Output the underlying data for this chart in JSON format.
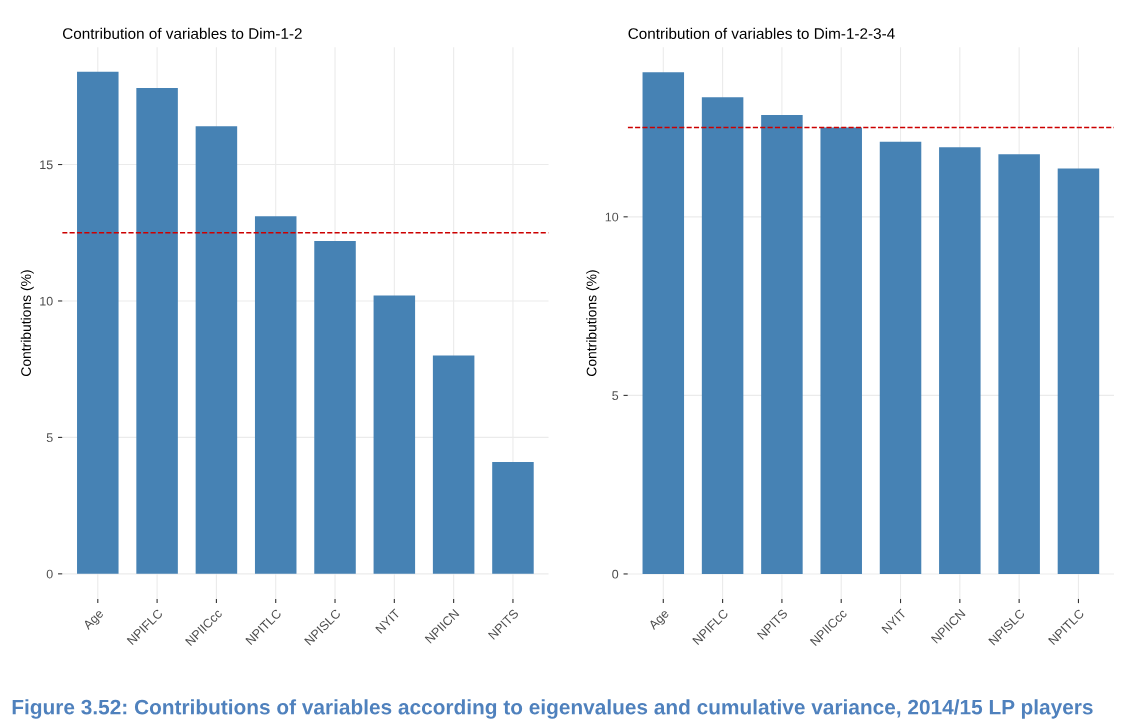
{
  "chart_data": [
    {
      "type": "bar",
      "title": "Contribution of variables to Dim-1-2",
      "ylabel": "Contributions (%)",
      "categories": [
        "Age",
        "NPIFLC",
        "NPIICcc",
        "NPITLC",
        "NPISLC",
        "NYIT",
        "NPIICN",
        "NPITS"
      ],
      "values": [
        18.4,
        17.8,
        16.4,
        13.1,
        12.2,
        10.2,
        8.0,
        4.1
      ],
      "color": "#4682b4",
      "ylim": [
        -0.92,
        19.3
      ],
      "yticks": [
        0,
        5,
        10,
        15
      ],
      "grid": true,
      "ref_lines": [
        {
          "axis": "y",
          "value": 12.5,
          "color": "#cc0000",
          "line_style": "dashed"
        }
      ]
    },
    {
      "type": "bar",
      "title": "Contribution of variables to Dim-1-2-3-4",
      "ylabel": "Contributions (%)",
      "categories": [
        "Age",
        "NPIFLC",
        "NPITS",
        "NPIICcc",
        "NYIT",
        "NPIICN",
        "NPISLC",
        "NPITLC"
      ],
      "values": [
        14.05,
        13.35,
        12.85,
        12.5,
        12.1,
        11.95,
        11.75,
        11.35
      ],
      "color": "#4682b4",
      "ylim": [
        -0.7,
        14.75
      ],
      "yticks": [
        0,
        5,
        10
      ],
      "grid": true,
      "ref_lines": [
        {
          "axis": "y",
          "value": 12.5,
          "color": "#cc0000",
          "line_style": "dashed"
        }
      ],
      "annotations": [
        "Figure 3.52: Contributions of variables according to eigenvalues and cumulative variance, 2014/15 LP players"
      ]
    }
  ]
}
